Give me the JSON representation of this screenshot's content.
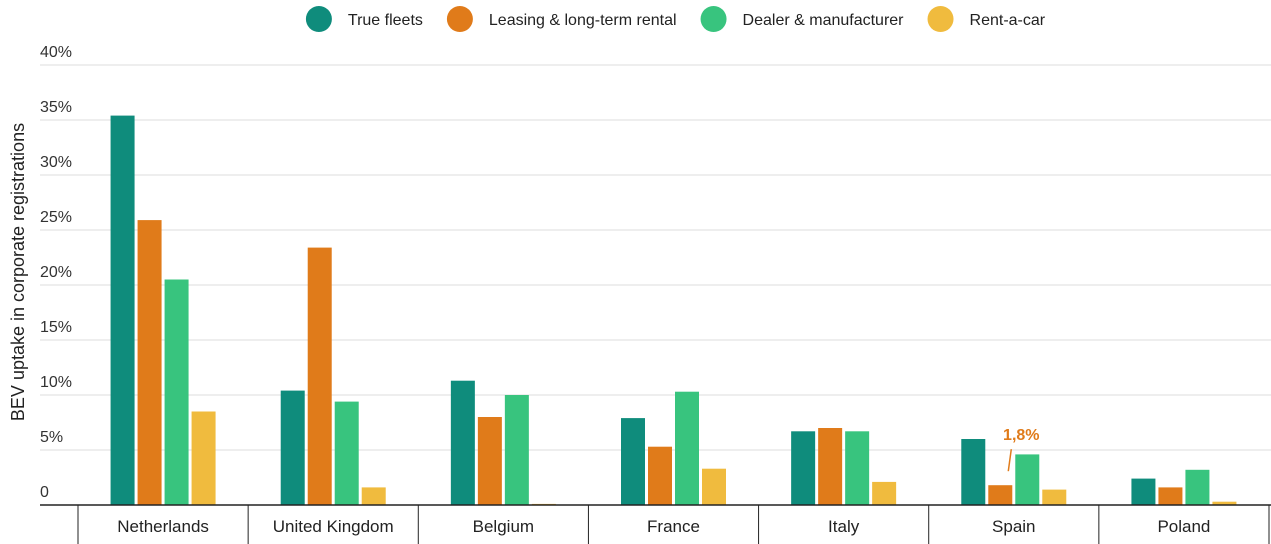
{
  "chart_data": {
    "type": "bar",
    "ylabel": "BEV uptake in corporate registrations",
    "xlabel": "",
    "ylim": [
      0,
      40
    ],
    "yticks": [
      0,
      5,
      10,
      15,
      20,
      25,
      30,
      35,
      40
    ],
    "ytick_labels": [
      "0",
      "5%",
      "10%",
      "15%",
      "20%",
      "25%",
      "30%",
      "35%",
      "40%"
    ],
    "grid": true,
    "legend_position": "top",
    "categories": [
      "Netherlands",
      "United Kingdom",
      "Belgium",
      "France",
      "Italy",
      "Spain",
      "Poland"
    ],
    "series": [
      {
        "name": "True fleets",
        "color": "#0f8c7c",
        "values": [
          35.4,
          10.4,
          11.3,
          7.9,
          6.7,
          6.0,
          2.4
        ]
      },
      {
        "name": "Leasing & long-term rental",
        "color": "#e07b1a",
        "values": [
          25.9,
          23.4,
          8.0,
          5.3,
          7.0,
          1.8,
          1.6
        ]
      },
      {
        "name": "Dealer & manufacturer",
        "color": "#38c47e",
        "values": [
          20.5,
          9.4,
          10.0,
          10.3,
          6.7,
          4.6,
          3.2
        ]
      },
      {
        "name": "Rent-a-car",
        "color": "#f0bb3e",
        "values": [
          8.5,
          1.6,
          0.1,
          3.3,
          2.1,
          1.4,
          0.3
        ]
      }
    ],
    "annotations": [
      {
        "text": "1,8%",
        "category": "Spain",
        "series": "Leasing & long-term rental",
        "color": "#e07b1a"
      }
    ]
  }
}
